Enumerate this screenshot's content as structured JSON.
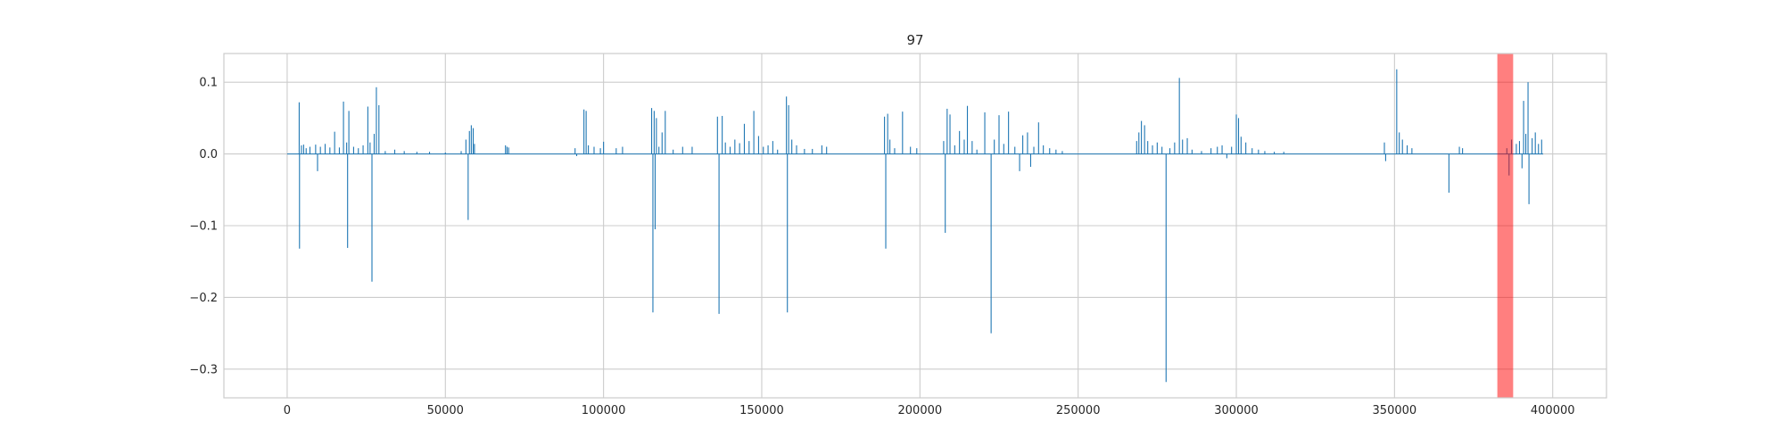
{
  "chart_data": {
    "type": "line",
    "title": "97",
    "xlabel": "",
    "ylabel": "",
    "xlim": [
      -20000,
      417000
    ],
    "ylim": [
      -0.34,
      0.14
    ],
    "grid": true,
    "xticks": [
      0,
      50000,
      100000,
      150000,
      200000,
      250000,
      300000,
      350000,
      400000
    ],
    "xtick_labels": [
      "0",
      "50000",
      "100000",
      "150000",
      "200000",
      "250000",
      "300000",
      "350000",
      "400000"
    ],
    "yticks": [
      0.1,
      0.0,
      -0.1,
      -0.2,
      -0.3
    ],
    "ytick_labels": [
      "0.1",
      "0.0",
      "−0.1",
      "−0.2",
      "−0.3"
    ],
    "series": [
      {
        "color": "#1f77b4",
        "baseline": 0.0,
        "x_range": [
          0,
          397000
        ],
        "spikes": [
          [
            3800,
            0.072
          ],
          [
            3900,
            -0.132
          ],
          [
            4500,
            0.012
          ],
          [
            5200,
            0.013
          ],
          [
            6000,
            0.008
          ],
          [
            7200,
            0.01
          ],
          [
            9000,
            0.013
          ],
          [
            9600,
            -0.024
          ],
          [
            10500,
            0.01
          ],
          [
            12000,
            0.014
          ],
          [
            13500,
            0.009
          ],
          [
            15000,
            0.031
          ],
          [
            16500,
            0.009
          ],
          [
            17800,
            0.073
          ],
          [
            18800,
            0.016
          ],
          [
            19100,
            -0.131
          ],
          [
            19500,
            0.06
          ],
          [
            21000,
            0.01
          ],
          [
            22500,
            0.008
          ],
          [
            24000,
            0.012
          ],
          [
            25500,
            0.066
          ],
          [
            26200,
            0.016
          ],
          [
            26800,
            -0.178
          ],
          [
            27500,
            0.028
          ],
          [
            28200,
            0.093
          ],
          [
            29000,
            0.068
          ],
          [
            31000,
            0.004
          ],
          [
            34000,
            0.006
          ],
          [
            37000,
            0.004
          ],
          [
            41000,
            0.003
          ],
          [
            45000,
            0.003
          ],
          [
            50000,
            0.002
          ],
          [
            55000,
            0.004
          ],
          [
            56500,
            0.02
          ],
          [
            57200,
            -0.092
          ],
          [
            57600,
            0.032
          ],
          [
            58200,
            0.04
          ],
          [
            58800,
            0.036
          ],
          [
            59200,
            0.014
          ],
          [
            69000,
            0.012
          ],
          [
            69500,
            0.01
          ],
          [
            70000,
            0.009
          ],
          [
            91000,
            0.008
          ],
          [
            91500,
            -0.003
          ],
          [
            93800,
            0.062
          ],
          [
            94500,
            0.06
          ],
          [
            95200,
            0.012
          ],
          [
            97000,
            0.01
          ],
          [
            99000,
            0.008
          ],
          [
            100000,
            0.017
          ],
          [
            104000,
            0.008
          ],
          [
            106000,
            0.01
          ],
          [
            115200,
            0.064
          ],
          [
            115600,
            -0.221
          ],
          [
            116000,
            0.06
          ],
          [
            116300,
            -0.105
          ],
          [
            116700,
            0.05
          ],
          [
            117500,
            0.01
          ],
          [
            118500,
            0.03
          ],
          [
            119500,
            0.06
          ],
          [
            122000,
            0.006
          ],
          [
            125000,
            0.01
          ],
          [
            128000,
            0.01
          ],
          [
            136000,
            0.052
          ],
          [
            136500,
            -0.223
          ],
          [
            137500,
            0.053
          ],
          [
            138500,
            0.016
          ],
          [
            140000,
            0.01
          ],
          [
            141500,
            0.02
          ],
          [
            143000,
            0.015
          ],
          [
            144500,
            0.042
          ],
          [
            146000,
            0.018
          ],
          [
            147500,
            0.06
          ],
          [
            149000,
            0.025
          ],
          [
            150500,
            0.01
          ],
          [
            152000,
            0.012
          ],
          [
            153500,
            0.018
          ],
          [
            155000,
            0.006
          ],
          [
            157800,
            0.08
          ],
          [
            158100,
            -0.221
          ],
          [
            158500,
            0.068
          ],
          [
            159500,
            0.02
          ],
          [
            161000,
            0.012
          ],
          [
            163500,
            0.007
          ],
          [
            166000,
            0.007
          ],
          [
            169000,
            0.012
          ],
          [
            170500,
            0.01
          ],
          [
            188800,
            0.052
          ],
          [
            189200,
            -0.132
          ],
          [
            189800,
            0.056
          ],
          [
            190500,
            0.02
          ],
          [
            192000,
            0.008
          ],
          [
            194500,
            0.059
          ],
          [
            197000,
            0.01
          ],
          [
            199000,
            0.008
          ],
          [
            207500,
            0.018
          ],
          [
            208000,
            -0.11
          ],
          [
            208600,
            0.063
          ],
          [
            209500,
            0.055
          ],
          [
            211000,
            0.012
          ],
          [
            212500,
            0.032
          ],
          [
            214000,
            0.02
          ],
          [
            215000,
            0.067
          ],
          [
            216500,
            0.018
          ],
          [
            218000,
            0.006
          ],
          [
            220500,
            0.058
          ],
          [
            222500,
            -0.25
          ],
          [
            223500,
            0.02
          ],
          [
            225000,
            0.054
          ],
          [
            226500,
            0.014
          ],
          [
            228000,
            0.059
          ],
          [
            230000,
            0.01
          ],
          [
            231500,
            -0.024
          ],
          [
            232500,
            0.026
          ],
          [
            234000,
            0.03
          ],
          [
            235000,
            -0.018
          ],
          [
            236000,
            0.01
          ],
          [
            237500,
            0.044
          ],
          [
            239000,
            0.012
          ],
          [
            241000,
            0.008
          ],
          [
            243000,
            0.006
          ],
          [
            245000,
            0.004
          ],
          [
            268500,
            0.018
          ],
          [
            269200,
            0.03
          ],
          [
            270000,
            0.046
          ],
          [
            271000,
            0.04
          ],
          [
            272000,
            0.018
          ],
          [
            273500,
            0.012
          ],
          [
            275000,
            0.016
          ],
          [
            276500,
            0.01
          ],
          [
            277800,
            -0.318
          ],
          [
            279000,
            0.008
          ],
          [
            280500,
            0.016
          ],
          [
            282000,
            0.106
          ],
          [
            283000,
            0.02
          ],
          [
            284500,
            0.022
          ],
          [
            286000,
            0.006
          ],
          [
            289000,
            0.004
          ],
          [
            292000,
            0.008
          ],
          [
            294000,
            0.01
          ],
          [
            295500,
            0.012
          ],
          [
            297000,
            -0.006
          ],
          [
            298500,
            0.01
          ],
          [
            300000,
            0.055
          ],
          [
            300700,
            0.05
          ],
          [
            301500,
            0.024
          ],
          [
            303000,
            0.016
          ],
          [
            305000,
            0.008
          ],
          [
            307000,
            0.006
          ],
          [
            309000,
            0.004
          ],
          [
            312000,
            0.003
          ],
          [
            315000,
            0.003
          ],
          [
            346800,
            0.016
          ],
          [
            347200,
            -0.01
          ],
          [
            350700,
            0.118
          ],
          [
            351500,
            0.03
          ],
          [
            352500,
            0.02
          ],
          [
            354000,
            0.012
          ],
          [
            355500,
            0.008
          ],
          [
            367200,
            -0.054
          ],
          [
            370500,
            0.01
          ],
          [
            371500,
            0.008
          ],
          [
            385500,
            0.008
          ],
          [
            386200,
            -0.03
          ],
          [
            387000,
            0.02
          ],
          [
            388500,
            0.014
          ],
          [
            389500,
            0.018
          ],
          [
            390300,
            -0.02
          ],
          [
            390800,
            0.074
          ],
          [
            391500,
            0.028
          ],
          [
            392200,
            0.1
          ],
          [
            392500,
            -0.07
          ],
          [
            393500,
            0.022
          ],
          [
            394500,
            0.03
          ],
          [
            395500,
            0.014
          ],
          [
            396500,
            0.02
          ]
        ]
      }
    ],
    "highlight_span": {
      "x_start": 382500,
      "x_end": 387500,
      "color": "#ff0000",
      "opacity": 0.5
    }
  }
}
